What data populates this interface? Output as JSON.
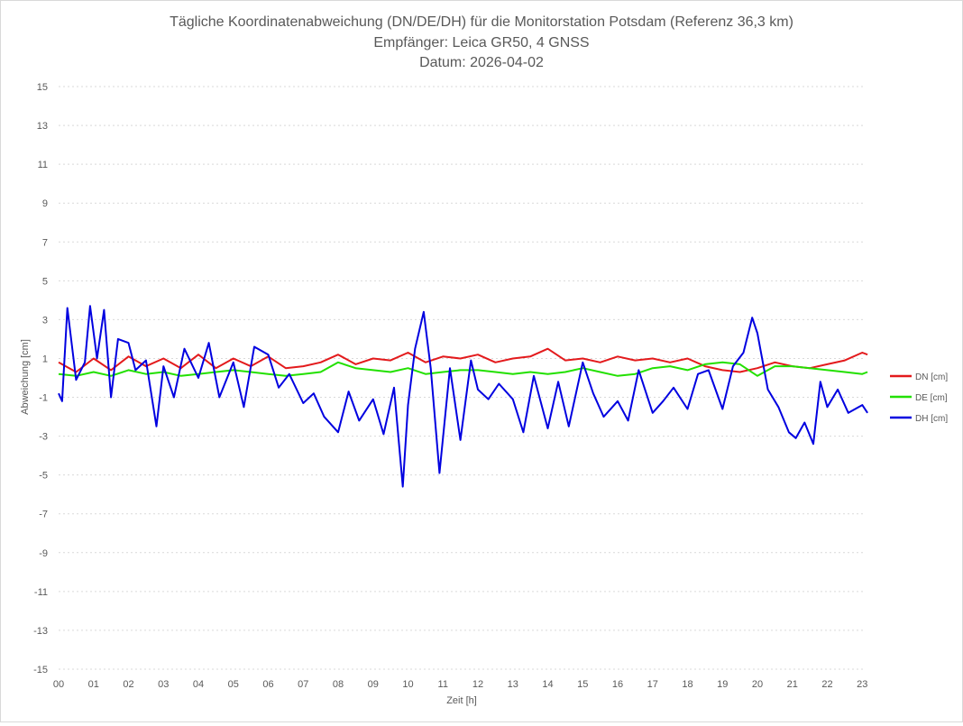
{
  "chart_data": {
    "type": "line",
    "title": "Tägliche Koordinatenabweichung (DN/DE/DH) für die Monitorstation Potsdam (Referenz 36,3 km)",
    "subtitle": "Empfänger: Leica GR50, 4 GNSS",
    "date_line": "Datum: 2026-04-02",
    "xlabel": "Zeit [h]",
    "ylabel": "Abweichung [cm]",
    "xlim": [
      0,
      23.15
    ],
    "ylim": [
      -15,
      15
    ],
    "xticks": [
      "00",
      "01",
      "02",
      "03",
      "04",
      "05",
      "06",
      "07",
      "08",
      "09",
      "10",
      "11",
      "12",
      "13",
      "14",
      "15",
      "16",
      "17",
      "18",
      "19",
      "20",
      "21",
      "22",
      "23"
    ],
    "yticks": [
      15,
      13,
      11,
      9,
      7,
      5,
      3,
      1,
      -1,
      -3,
      -5,
      -7,
      -9,
      -11,
      -13,
      -15
    ],
    "grid": "horizontal-dotted",
    "legend_position": "right",
    "series": [
      {
        "name": "DN [cm]",
        "color": "#e31a1c",
        "x": [
          0,
          0.5,
          1,
          1.5,
          2,
          2.5,
          3,
          3.5,
          4,
          4.5,
          5,
          5.5,
          6,
          6.5,
          7,
          7.5,
          8,
          8.5,
          9,
          9.5,
          10,
          10.5,
          11,
          11.5,
          12,
          12.5,
          13,
          13.5,
          14,
          14.5,
          15,
          15.5,
          16,
          16.5,
          17,
          17.5,
          18,
          18.5,
          19,
          19.5,
          20,
          20.5,
          21,
          21.5,
          22,
          22.5,
          23,
          23.15
        ],
        "values": [
          0.8,
          0.3,
          1.0,
          0.4,
          1.1,
          0.6,
          1.0,
          0.5,
          1.2,
          0.5,
          1.0,
          0.6,
          1.1,
          0.5,
          0.6,
          0.8,
          1.2,
          0.7,
          1.0,
          0.9,
          1.3,
          0.8,
          1.1,
          1.0,
          1.2,
          0.8,
          1.0,
          1.1,
          1.5,
          0.9,
          1.0,
          0.8,
          1.1,
          0.9,
          1.0,
          0.8,
          1.0,
          0.6,
          0.4,
          0.3,
          0.5,
          0.8,
          0.6,
          0.5,
          0.7,
          0.9,
          1.3,
          1.2
        ]
      },
      {
        "name": "DE [cm]",
        "color": "#22e000",
        "x": [
          0,
          0.5,
          1,
          1.5,
          2,
          2.5,
          3,
          3.5,
          4,
          4.5,
          5,
          5.5,
          6,
          6.5,
          7,
          7.5,
          8,
          8.5,
          9,
          9.5,
          10,
          10.5,
          11,
          11.5,
          12,
          12.5,
          13,
          13.5,
          14,
          14.5,
          15,
          15.5,
          16,
          16.5,
          17,
          17.5,
          18,
          18.5,
          19,
          19.5,
          20,
          20.5,
          21,
          21.5,
          22,
          22.5,
          23,
          23.15
        ],
        "values": [
          0.2,
          0.1,
          0.3,
          0.1,
          0.4,
          0.2,
          0.3,
          0.1,
          0.2,
          0.3,
          0.4,
          0.3,
          0.2,
          0.1,
          0.2,
          0.3,
          0.8,
          0.5,
          0.4,
          0.3,
          0.5,
          0.2,
          0.3,
          0.4,
          0.4,
          0.3,
          0.2,
          0.3,
          0.2,
          0.3,
          0.5,
          0.3,
          0.1,
          0.2,
          0.5,
          0.6,
          0.4,
          0.7,
          0.8,
          0.7,
          0.1,
          0.6,
          0.6,
          0.5,
          0.4,
          0.3,
          0.2,
          0.3
        ]
      },
      {
        "name": "DH [cm]",
        "color": "#0000e0",
        "x": [
          0,
          0.1,
          0.25,
          0.5,
          0.75,
          0.9,
          1.1,
          1.3,
          1.5,
          1.7,
          2,
          2.2,
          2.5,
          2.8,
          3,
          3.3,
          3.6,
          4,
          4.3,
          4.6,
          5,
          5.3,
          5.6,
          6,
          6.3,
          6.6,
          7,
          7.3,
          7.6,
          8,
          8.3,
          8.6,
          9,
          9.3,
          9.6,
          9.85,
          10,
          10.2,
          10.45,
          10.65,
          10.9,
          11.2,
          11.5,
          11.8,
          12,
          12.3,
          12.6,
          13,
          13.3,
          13.6,
          14,
          14.3,
          14.6,
          15,
          15.3,
          15.6,
          16,
          16.3,
          16.6,
          17,
          17.3,
          17.6,
          18,
          18.3,
          18.6,
          19,
          19.3,
          19.6,
          19.85,
          20,
          20.3,
          20.6,
          20.9,
          21.1,
          21.35,
          21.6,
          21.8,
          22,
          22.3,
          22.6,
          23,
          23.15
        ],
        "values": [
          -0.8,
          -1.2,
          3.6,
          -0.1,
          0.8,
          3.7,
          1.0,
          3.5,
          -1.0,
          2.0,
          1.8,
          0.4,
          0.9,
          -2.5,
          0.6,
          -1.0,
          1.5,
          0.0,
          1.8,
          -1.0,
          0.8,
          -1.5,
          1.6,
          1.2,
          -0.5,
          0.2,
          -1.3,
          -0.8,
          -2.0,
          -2.8,
          -0.7,
          -2.2,
          -1.1,
          -2.9,
          -0.5,
          -5.6,
          -1.4,
          1.5,
          3.4,
          0.5,
          -4.9,
          0.5,
          -3.2,
          0.9,
          -0.6,
          -1.1,
          -0.3,
          -1.1,
          -2.8,
          0.1,
          -2.6,
          -0.2,
          -2.5,
          0.8,
          -0.8,
          -2.0,
          -1.2,
          -2.2,
          0.4,
          -1.8,
          -1.2,
          -0.5,
          -1.6,
          0.2,
          0.4,
          -1.6,
          0.6,
          1.3,
          3.1,
          2.3,
          -0.6,
          -1.5,
          -2.8,
          -3.1,
          -2.3,
          -3.4,
          -0.2,
          -1.5,
          -0.6,
          -1.8,
          -1.4,
          -1.8
        ]
      }
    ]
  }
}
